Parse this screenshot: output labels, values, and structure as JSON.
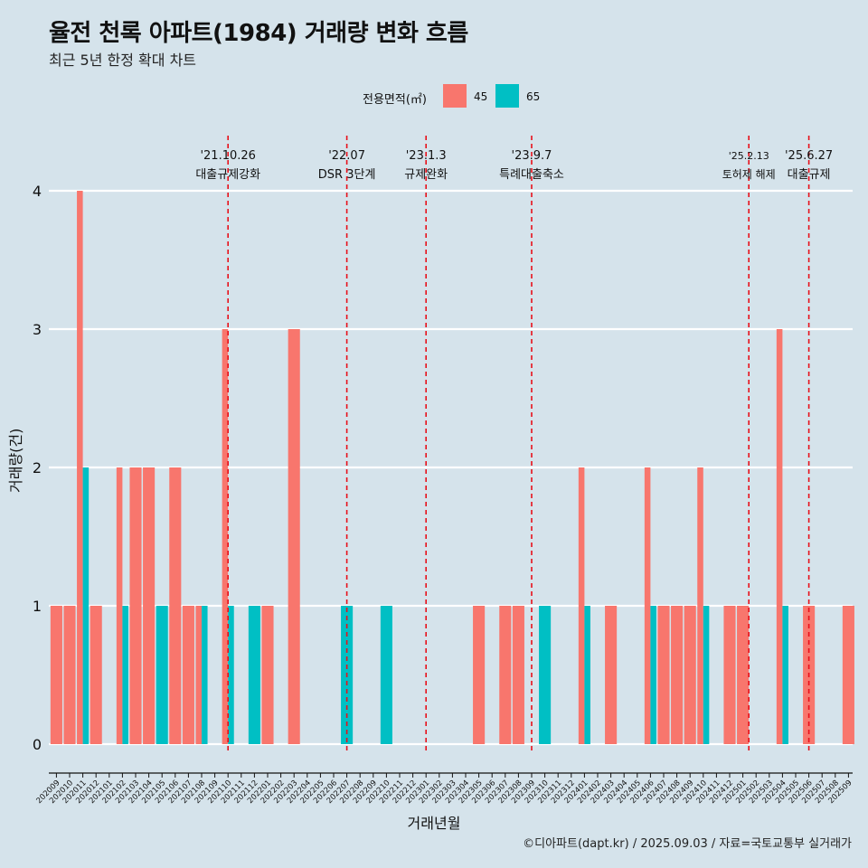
{
  "chart_data": {
    "type": "bar",
    "title": "율전 천록 아파트(1984) 거래량 변화 흐름",
    "subtitle": "최근 5년 한정 확대 차트",
    "xlabel": "거래년월",
    "ylabel": "거래량(건)",
    "caption": "©디아파트(dapt.kr) / 2025.09.03 / 자료=국토교통부 실거래가",
    "legend": {
      "title": "전용면적(㎡)",
      "position": "top"
    },
    "ylim": [
      0,
      4
    ],
    "yticks": [
      0,
      1,
      2,
      3,
      4
    ],
    "categories": [
      "202009",
      "202010",
      "202011",
      "202012",
      "202101",
      "202102",
      "202103",
      "202104",
      "202105",
      "202106",
      "202107",
      "202108",
      "202109",
      "202110",
      "202111",
      "202112",
      "202201",
      "202202",
      "202203",
      "202204",
      "202205",
      "202206",
      "202207",
      "202208",
      "202209",
      "202210",
      "202211",
      "202212",
      "202301",
      "202302",
      "202303",
      "202304",
      "202305",
      "202306",
      "202307",
      "202308",
      "202309",
      "202310",
      "202311",
      "202312",
      "202401",
      "202402",
      "202403",
      "202404",
      "202405",
      "202406",
      "202407",
      "202408",
      "202409",
      "202410",
      "202411",
      "202412",
      "202501",
      "202502",
      "202503",
      "202504",
      "202505",
      "202506",
      "202507",
      "202508",
      "202509"
    ],
    "series": [
      {
        "name": "45",
        "color": "#f8766d",
        "values": [
          1,
          1,
          4,
          1,
          0,
          2,
          2,
          2,
          0,
          2,
          1,
          1,
          0,
          3,
          0,
          0,
          1,
          0,
          3,
          0,
          0,
          0,
          0,
          0,
          0,
          0,
          0,
          0,
          0,
          0,
          0,
          0,
          1,
          0,
          1,
          1,
          0,
          0,
          0,
          0,
          2,
          0,
          1,
          0,
          0,
          2,
          1,
          1,
          1,
          2,
          0,
          1,
          1,
          0,
          0,
          3,
          0,
          1,
          0,
          0,
          1
        ]
      },
      {
        "name": "65",
        "color": "#00bfc4",
        "values": [
          0,
          0,
          2,
          0,
          0,
          1,
          0,
          0,
          1,
          0,
          0,
          1,
          0,
          1,
          0,
          1,
          0,
          0,
          0,
          0,
          0,
          0,
          1,
          0,
          0,
          1,
          0,
          0,
          0,
          0,
          0,
          0,
          0,
          0,
          0,
          0,
          0,
          1,
          0,
          0,
          1,
          0,
          0,
          0,
          0,
          1,
          0,
          0,
          0,
          1,
          0,
          0,
          0,
          0,
          0,
          1,
          0,
          0,
          0,
          0,
          0
        ]
      }
    ],
    "events": [
      {
        "date": "'21.10.26",
        "label": "대출규제강화",
        "category": "202110"
      },
      {
        "date": "'22.07",
        "label": "DSR 3단계",
        "category": "202207"
      },
      {
        "date": "'23.1.3",
        "label": "규제완화",
        "category": "202301"
      },
      {
        "date": "'23.9.7",
        "label": "특례대출축소",
        "category": "202309"
      },
      {
        "date": "'25.2.13",
        "label": "토허제 해제",
        "category": "202502"
      },
      {
        "date": "'25.6.27",
        "label": "대출규제",
        "category": "202506"
      }
    ],
    "grid": true
  }
}
